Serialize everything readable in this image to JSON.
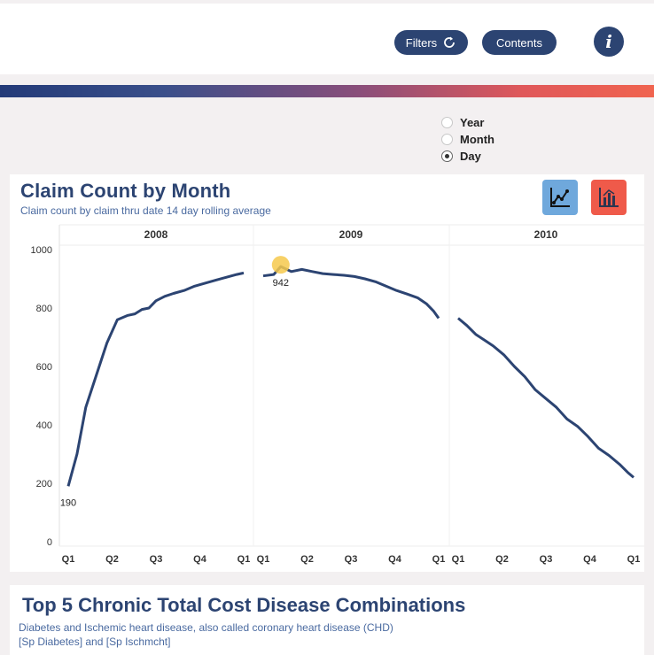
{
  "toolbar": {
    "filters_label": "Filters",
    "contents_label": "Contents",
    "info_label": "i"
  },
  "granularity": {
    "options": [
      "Year",
      "Month",
      "Day"
    ],
    "selected": "Day"
  },
  "chart_card": {
    "title": "Claim Count by Month",
    "subtitle": "Claim count by claim thru date 14 day rolling average"
  },
  "chart_data": {
    "type": "line",
    "title": "Claim Count by Month",
    "subtitle": "Claim count by claim thru date 14 day rolling average",
    "ylim": [
      0,
      1000
    ],
    "yticks": [
      0,
      200,
      400,
      600,
      800,
      1000
    ],
    "panels": [
      {
        "year": "2008",
        "x_ticks": [
          "Q1",
          "Q2",
          "Q3",
          "Q4",
          "Q1"
        ],
        "points": [
          [
            0.0,
            190
          ],
          [
            0.05,
            300
          ],
          [
            0.1,
            460
          ],
          [
            0.16,
            570
          ],
          [
            0.22,
            680
          ],
          [
            0.28,
            760
          ],
          [
            0.34,
            775
          ],
          [
            0.38,
            780
          ],
          [
            0.42,
            795
          ],
          [
            0.46,
            800
          ],
          [
            0.5,
            825
          ],
          [
            0.55,
            840
          ],
          [
            0.6,
            850
          ],
          [
            0.66,
            860
          ],
          [
            0.72,
            875
          ],
          [
            0.78,
            885
          ],
          [
            0.84,
            895
          ],
          [
            0.9,
            905
          ],
          [
            0.96,
            915
          ],
          [
            1.0,
            920
          ]
        ]
      },
      {
        "year": "2009",
        "x_ticks": [
          "Q1",
          "Q2",
          "Q3",
          "Q4",
          "Q1"
        ],
        "points": [
          [
            0.0,
            910
          ],
          [
            0.06,
            915
          ],
          [
            0.1,
            942
          ],
          [
            0.16,
            925
          ],
          [
            0.22,
            932
          ],
          [
            0.28,
            925
          ],
          [
            0.34,
            918
          ],
          [
            0.4,
            915
          ],
          [
            0.46,
            912
          ],
          [
            0.52,
            908
          ],
          [
            0.58,
            900
          ],
          [
            0.64,
            890
          ],
          [
            0.7,
            875
          ],
          [
            0.76,
            860
          ],
          [
            0.82,
            848
          ],
          [
            0.88,
            835
          ],
          [
            0.93,
            815
          ],
          [
            0.97,
            790
          ],
          [
            1.0,
            765
          ]
        ]
      },
      {
        "year": "2010",
        "x_ticks": [
          "Q1",
          "Q2",
          "Q3",
          "Q4",
          "Q1"
        ],
        "points": [
          [
            0.0,
            765
          ],
          [
            0.05,
            740
          ],
          [
            0.1,
            710
          ],
          [
            0.15,
            690
          ],
          [
            0.2,
            670
          ],
          [
            0.26,
            640
          ],
          [
            0.32,
            600
          ],
          [
            0.38,
            565
          ],
          [
            0.44,
            520
          ],
          [
            0.5,
            490
          ],
          [
            0.56,
            460
          ],
          [
            0.62,
            420
          ],
          [
            0.68,
            395
          ],
          [
            0.74,
            360
          ],
          [
            0.8,
            320
          ],
          [
            0.86,
            295
          ],
          [
            0.92,
            265
          ],
          [
            0.97,
            235
          ],
          [
            1.0,
            220
          ]
        ]
      }
    ],
    "annotations": [
      {
        "label": "190",
        "panel": 0,
        "x": 0.0,
        "y": 190
      },
      {
        "label": "942",
        "panel": 1,
        "x": 0.1,
        "y": 942,
        "highlight": "#f6c94c"
      }
    ],
    "line_color": "#2c4472",
    "grid": false
  },
  "disease_card": {
    "title": "Top 5 Chronic Total Cost Disease Combinations",
    "line1": "Diabetes and Ischemic heart disease, also called coronary heart disease (CHD)",
    "line2": "[Sp Diabetes] and [Sp Ischmcht]"
  }
}
